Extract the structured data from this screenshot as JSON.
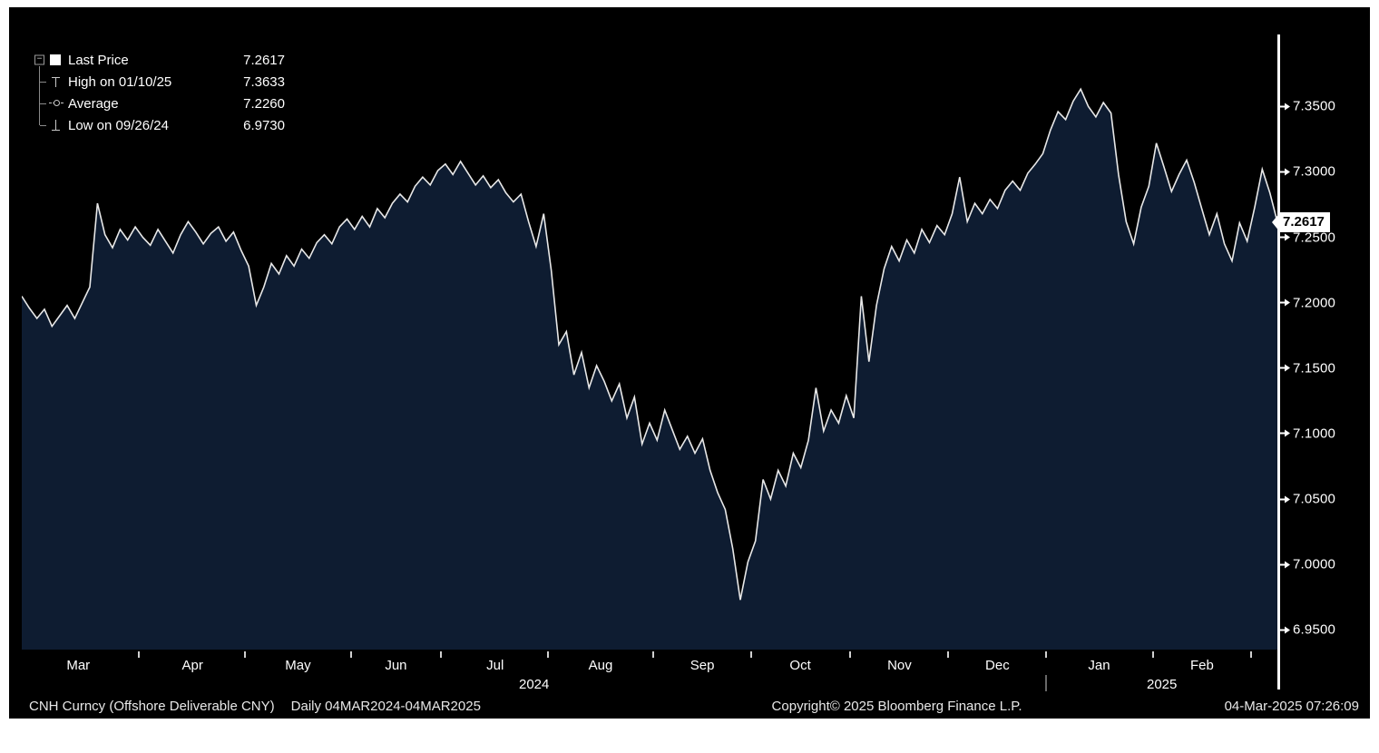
{
  "colors": {
    "background": "#000000",
    "area_fill": "#0e1c31",
    "line": "#e8e8e8",
    "axis_text": "#ffffff",
    "last_price_box_bg": "#ffffff",
    "last_price_box_text": "#000000"
  },
  "legend": {
    "items": [
      {
        "tree": "collapse",
        "icon": "filled-square",
        "label": "Last Price",
        "value": "7.2617"
      },
      {
        "tree": "branch",
        "icon": "high-whisker",
        "label": "High on 01/10/25",
        "value": "7.3633"
      },
      {
        "tree": "branch",
        "icon": "average-marker",
        "label": "Average",
        "value": "7.2260"
      },
      {
        "tree": "end",
        "icon": "low-whisker",
        "label": "Low on 09/26/24",
        "value": "6.9730"
      }
    ]
  },
  "chart_data": {
    "type": "area",
    "title": "",
    "xlabel": "",
    "ylabel": "",
    "ylim": [
      6.935,
      7.405
    ],
    "legend_position": "top-left",
    "grid": false,
    "last_price": {
      "value": 7.2617,
      "label": "7.2617"
    },
    "y_ticks": [
      {
        "label": "7.3500",
        "value": 7.35
      },
      {
        "label": "7.3000",
        "value": 7.3
      },
      {
        "label": "7.2500",
        "value": 7.25
      },
      {
        "label": "7.2000",
        "value": 7.2
      },
      {
        "label": "7.1500",
        "value": 7.15
      },
      {
        "label": "7.1000",
        "value": 7.1
      },
      {
        "label": "7.0500",
        "value": 7.05
      },
      {
        "label": "7.0000",
        "value": 7.0
      },
      {
        "label": "6.9500",
        "value": 6.95
      }
    ],
    "x_ticks": [
      {
        "label": "Mar",
        "pos": 4.5
      },
      {
        "label": "Apr",
        "pos": 13.6
      },
      {
        "label": "May",
        "pos": 22.0
      },
      {
        "label": "Jun",
        "pos": 29.8
      },
      {
        "label": "Jul",
        "pos": 37.7
      },
      {
        "label": "Aug",
        "pos": 46.1
      },
      {
        "label": "Sep",
        "pos": 54.2
      },
      {
        "label": "Oct",
        "pos": 62.0
      },
      {
        "label": "Nov",
        "pos": 69.9
      },
      {
        "label": "Dec",
        "pos": 77.7
      },
      {
        "label": "Jan",
        "pos": 85.8
      },
      {
        "label": "Feb",
        "pos": 94.0
      }
    ],
    "x_boundary_ticks": [
      9.3,
      17.8,
      26.2,
      33.4,
      41.9,
      50.3,
      58.1,
      66.0,
      73.8,
      81.6,
      90.1,
      97.9
    ],
    "x_years": [
      {
        "label": "2024",
        "pos": 40.8
      },
      {
        "label": "2025",
        "pos": 90.8
      }
    ],
    "year_divider_pos": 81.6,
    "series": [
      {
        "name": "Last Price",
        "values": [
          7.205,
          7.196,
          7.188,
          7.195,
          7.182,
          7.19,
          7.198,
          7.188,
          7.2,
          7.212,
          7.276,
          7.252,
          7.242,
          7.256,
          7.248,
          7.258,
          7.25,
          7.244,
          7.256,
          7.247,
          7.238,
          7.252,
          7.262,
          7.254,
          7.245,
          7.253,
          7.258,
          7.247,
          7.254,
          7.24,
          7.228,
          7.198,
          7.212,
          7.23,
          7.222,
          7.236,
          7.228,
          7.241,
          7.234,
          7.246,
          7.252,
          7.245,
          7.258,
          7.264,
          7.256,
          7.266,
          7.258,
          7.272,
          7.265,
          7.276,
          7.283,
          7.277,
          7.289,
          7.296,
          7.29,
          7.301,
          7.306,
          7.298,
          7.308,
          7.299,
          7.29,
          7.297,
          7.288,
          7.294,
          7.284,
          7.277,
          7.283,
          7.262,
          7.243,
          7.268,
          7.225,
          7.168,
          7.178,
          7.145,
          7.162,
          7.135,
          7.152,
          7.14,
          7.125,
          7.138,
          7.112,
          7.128,
          7.092,
          7.108,
          7.095,
          7.118,
          7.103,
          7.088,
          7.098,
          7.085,
          7.096,
          7.072,
          7.055,
          7.042,
          7.012,
          6.973,
          7.002,
          7.018,
          7.065,
          7.05,
          7.072,
          7.06,
          7.085,
          7.074,
          7.095,
          7.135,
          7.102,
          7.118,
          7.108,
          7.129,
          7.112,
          7.205,
          7.155,
          7.198,
          7.226,
          7.243,
          7.232,
          7.248,
          7.238,
          7.256,
          7.246,
          7.259,
          7.252,
          7.268,
          7.296,
          7.262,
          7.276,
          7.268,
          7.279,
          7.272,
          7.286,
          7.293,
          7.286,
          7.299,
          7.306,
          7.314,
          7.332,
          7.346,
          7.34,
          7.354,
          7.3633,
          7.35,
          7.342,
          7.353,
          7.345,
          7.298,
          7.262,
          7.245,
          7.273,
          7.289,
          7.322,
          7.304,
          7.285,
          7.298,
          7.309,
          7.292,
          7.272,
          7.252,
          7.268,
          7.245,
          7.232,
          7.261,
          7.247,
          7.273,
          7.302,
          7.284,
          7.2617
        ]
      }
    ]
  },
  "footer": {
    "instrument": "CNH Curncy (Offshore Deliverable CNY)",
    "range": "Daily 04MAR2024-04MAR2025",
    "copyright": "Copyright© 2025 Bloomberg Finance L.P.",
    "timestamp": "04-Mar-2025 07:26:09"
  }
}
